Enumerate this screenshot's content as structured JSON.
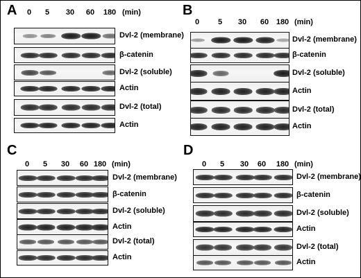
{
  "figure": {
    "panels": [
      {
        "letter": "A",
        "times": [
          "0",
          "5",
          "30",
          "60",
          "180"
        ],
        "unit": "(min)",
        "rows": [
          {
            "label": "Dvl-2 (membrane)",
            "intensity": [
              0.25,
              0.35,
              0.95,
              0.95,
              0.45
            ]
          },
          {
            "label": "β-catenin",
            "intensity": [
              0.85,
              0.85,
              0.85,
              0.85,
              0.85
            ]
          },
          {
            "label": "Dvl-2 (soluble)",
            "intensity": [
              0.7,
              0.6,
              0.0,
              0.0,
              0.5
            ]
          },
          {
            "label": "Actin",
            "intensity": [
              0.9,
              0.9,
              0.9,
              0.9,
              0.9
            ]
          },
          {
            "label": "Dvl-2 (total)",
            "intensity": [
              0.85,
              0.85,
              0.85,
              0.85,
              0.85
            ]
          },
          {
            "label": "Actin",
            "intensity": [
              0.9,
              0.9,
              0.9,
              0.9,
              0.9
            ]
          }
        ]
      },
      {
        "letter": "B",
        "times": [
          "0",
          "5",
          "30",
          "60",
          "180"
        ],
        "unit": "(min)",
        "rows": [
          {
            "label": "Dvl-2 (membrane)",
            "intensity": [
              0.2,
              0.95,
              0.95,
              0.9,
              0.15
            ]
          },
          {
            "label": "β-catenin",
            "intensity": [
              0.85,
              0.85,
              0.85,
              0.85,
              0.85
            ]
          },
          {
            "label": "Dvl-2 (soluble)",
            "intensity": [
              0.9,
              0.5,
              0.0,
              0.0,
              0.95
            ]
          },
          {
            "label": "Actin",
            "intensity": [
              0.9,
              0.9,
              0.9,
              0.9,
              0.9
            ]
          },
          {
            "label": "Dvl-2 (total)",
            "intensity": [
              0.85,
              0.85,
              0.85,
              0.85,
              0.85
            ]
          },
          {
            "label": "Actin",
            "intensity": [
              0.9,
              0.9,
              0.9,
              0.9,
              0.9
            ]
          }
        ]
      },
      {
        "letter": "C",
        "times": [
          "0",
          "5",
          "30",
          "60",
          "180"
        ],
        "unit": "(min)",
        "rows": [
          {
            "label": "Dvl-2 (membrane)",
            "intensity": [
              0.85,
              0.85,
              0.85,
              0.85,
              0.85
            ]
          },
          {
            "label": "β-catenin",
            "intensity": [
              0.85,
              0.85,
              0.85,
              0.85,
              0.85
            ]
          },
          {
            "label": "Dvl-2 (soluble)",
            "intensity": [
              0.85,
              0.85,
              0.85,
              0.85,
              0.85
            ]
          },
          {
            "label": "Actin",
            "intensity": [
              0.9,
              0.9,
              0.9,
              0.9,
              0.9
            ]
          },
          {
            "label": "Dvl-2 (total)",
            "intensity": [
              0.6,
              0.6,
              0.6,
              0.6,
              0.6
            ]
          },
          {
            "label": "Actin",
            "intensity": [
              0.85,
              0.85,
              0.85,
              0.85,
              0.85
            ]
          }
        ]
      },
      {
        "letter": "D",
        "times": [
          "0",
          "5",
          "30",
          "60",
          "180"
        ],
        "unit": "(min)",
        "rows": [
          {
            "label": "Dvl-2 (membrane)",
            "intensity": [
              0.85,
              0.85,
              0.85,
              0.85,
              0.85
            ]
          },
          {
            "label": "β-catenin",
            "intensity": [
              0.85,
              0.85,
              0.85,
              0.85,
              0.85
            ]
          },
          {
            "label": "Dvl-2 (soluble)",
            "intensity": [
              0.85,
              0.85,
              0.85,
              0.85,
              0.85
            ]
          },
          {
            "label": "Actin",
            "intensity": [
              0.9,
              0.9,
              0.9,
              0.9,
              0.9
            ]
          },
          {
            "label": "Dvl-2 (total)",
            "intensity": [
              0.8,
              0.8,
              0.8,
              0.8,
              0.8
            ]
          },
          {
            "label": "Actin",
            "intensity": [
              0.6,
              0.6,
              0.6,
              0.6,
              0.6
            ]
          }
        ]
      }
    ]
  }
}
